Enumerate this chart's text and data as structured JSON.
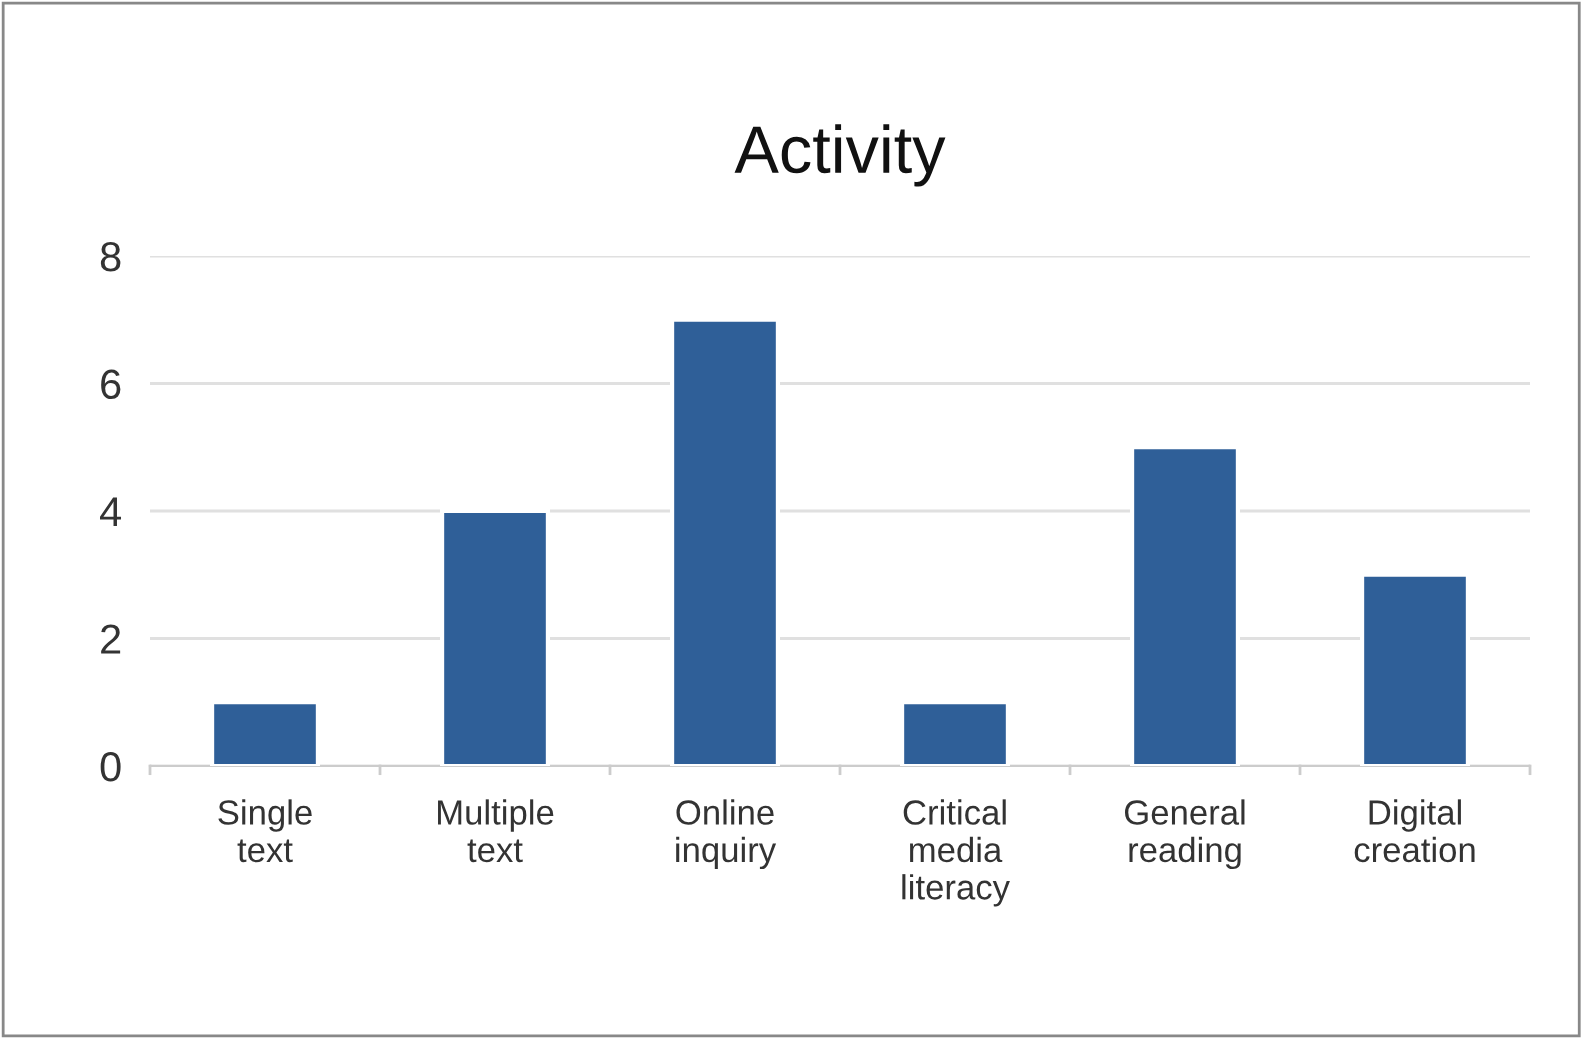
{
  "chart_data": {
    "type": "bar",
    "title": "Activity",
    "categories": [
      "Single\ntext",
      "Multiple\ntext",
      "Online\ninquiry",
      "Critical\nmedia\nliteracy",
      "General\nreading",
      "Digital\ncreation"
    ],
    "values": [
      1,
      4,
      7,
      1,
      5,
      3
    ],
    "color": "#2f5f98",
    "ylim": [
      0,
      8
    ],
    "yticks": [
      0,
      2,
      4,
      6,
      8
    ],
    "grid": "y",
    "legend": false
  }
}
